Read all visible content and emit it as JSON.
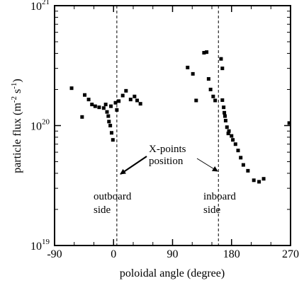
{
  "chart_data": {
    "type": "scatter",
    "xlabel": "poloidal angle (degree)",
    "ylabel_base": "particle flux (m",
    "ylabel_exp1": "-2",
    "ylabel_mid": " s",
    "ylabel_exp2": "-1",
    "ylabel_end": ")",
    "xlim": [
      -90,
      270
    ],
    "ylim": [
      1e+19,
      1e+21
    ],
    "yscale": "log",
    "grid": false,
    "x_ticks": [
      {
        "value": -90,
        "label": "-90"
      },
      {
        "value": 0,
        "label": "0"
      },
      {
        "value": 90,
        "label": "90"
      },
      {
        "value": 180,
        "label": "180"
      },
      {
        "value": 270,
        "label": "270"
      }
    ],
    "y_ticks": [
      {
        "value": 1e+19,
        "base": "10",
        "exp": "19"
      },
      {
        "value": 1e+20,
        "base": "10",
        "exp": "20"
      },
      {
        "value": 1e+21,
        "base": "10",
        "exp": "21"
      }
    ],
    "vlines": [
      5,
      160
    ],
    "annotations": {
      "xpoints_line1": "X-points",
      "xpoints_line2": "position",
      "outboard_line1": "outboard",
      "outboard_line2": "side",
      "inboard_line1": "inboard",
      "inboard_line2": "side"
    },
    "points": [
      {
        "x": -64,
        "y": 2.05e+20
      },
      {
        "x": -48,
        "y": 1.18e+20
      },
      {
        "x": -44,
        "y": 1.8e+20
      },
      {
        "x": -38,
        "y": 1.65e+20
      },
      {
        "x": -33,
        "y": 1.5e+20
      },
      {
        "x": -28,
        "y": 1.45e+20
      },
      {
        "x": -22,
        "y": 1.42e+20
      },
      {
        "x": -15,
        "y": 1.4e+20
      },
      {
        "x": -12,
        "y": 1.5e+20
      },
      {
        "x": -10,
        "y": 1.3e+20
      },
      {
        "x": -8,
        "y": 1.2e+20
      },
      {
        "x": -7,
        "y": 1.08e+20
      },
      {
        "x": -5,
        "y": 1e+20
      },
      {
        "x": -4,
        "y": 1.45e+20
      },
      {
        "x": -3,
        "y": 8.7e+19
      },
      {
        "x": -1,
        "y": 7.6e+19
      },
      {
        "x": 3,
        "y": 1.55e+20
      },
      {
        "x": 5,
        "y": 1.35e+20
      },
      {
        "x": 8,
        "y": 1.6e+20
      },
      {
        "x": 14,
        "y": 1.78e+20
      },
      {
        "x": 19,
        "y": 1.95e+20
      },
      {
        "x": 26,
        "y": 1.65e+20
      },
      {
        "x": 32,
        "y": 1.75e+20
      },
      {
        "x": 36,
        "y": 1.62e+20
      },
      {
        "x": 41,
        "y": 1.52e+20
      },
      {
        "x": 113,
        "y": 3.05e+20
      },
      {
        "x": 121,
        "y": 2.7e+20
      },
      {
        "x": 126,
        "y": 1.62e+20
      },
      {
        "x": 138,
        "y": 4.05e+20
      },
      {
        "x": 142,
        "y": 4.1e+20
      },
      {
        "x": 145,
        "y": 2.45e+20
      },
      {
        "x": 148,
        "y": 2e+20
      },
      {
        "x": 152,
        "y": 1.75e+20
      },
      {
        "x": 155,
        "y": 1.62e+20
      },
      {
        "x": 164,
        "y": 3.6e+20
      },
      {
        "x": 166,
        "y": 3e+20
      },
      {
        "x": 166,
        "y": 1.63e+20
      },
      {
        "x": 168,
        "y": 1.42e+20
      },
      {
        "x": 169,
        "y": 1.28e+20
      },
      {
        "x": 170,
        "y": 1.2e+20
      },
      {
        "x": 171,
        "y": 1.1e+20
      },
      {
        "x": 173,
        "y": 9.7e+19
      },
      {
        "x": 175,
        "y": 8.6e+19
      },
      {
        "x": 176,
        "y": 9e+19
      },
      {
        "x": 180,
        "y": 8.2e+19
      },
      {
        "x": 182,
        "y": 7.6e+19
      },
      {
        "x": 186,
        "y": 7e+19
      },
      {
        "x": 190,
        "y": 6.2e+19
      },
      {
        "x": 194,
        "y": 5.4e+19
      },
      {
        "x": 198,
        "y": 4.7e+19
      },
      {
        "x": 205,
        "y": 4.2e+19
      },
      {
        "x": 214,
        "y": 3.5e+19
      },
      {
        "x": 222,
        "y": 3.4e+19
      },
      {
        "x": 229,
        "y": 3.6e+19
      },
      {
        "x": 268,
        "y": 1.05e+20
      }
    ]
  }
}
